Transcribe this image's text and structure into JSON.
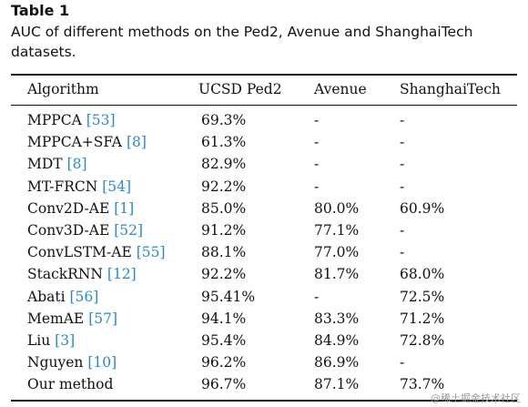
{
  "caption": {
    "label": "Table 1",
    "text": "AUC of different methods on the Ped2, Avenue and ShanghaiTech datasets."
  },
  "table": {
    "headers": [
      "Algorithm",
      "UCSD Ped2",
      "Avenue",
      "ShanghaiTech"
    ],
    "rows": [
      {
        "name": "MPPCA",
        "ref": "[53]",
        "ped2": "69.3%",
        "avenue": "-",
        "shanghaitech": "-"
      },
      {
        "name": "MPPCA+SFA",
        "ref": "[8]",
        "ped2": "61.3%",
        "avenue": "-",
        "shanghaitech": "-"
      },
      {
        "name": "MDT",
        "ref": "[8]",
        "ped2": "82.9%",
        "avenue": "-",
        "shanghaitech": "-"
      },
      {
        "name": "MT-FRCN",
        "ref": "[54]",
        "ped2": "92.2%",
        "avenue": "-",
        "shanghaitech": "-"
      },
      {
        "name": "Conv2D-AE",
        "ref": "[1]",
        "ped2": "85.0%",
        "avenue": "80.0%",
        "shanghaitech": "60.9%"
      },
      {
        "name": "Conv3D-AE",
        "ref": "[52]",
        "ped2": "91.2%",
        "avenue": "77.1%",
        "shanghaitech": "-"
      },
      {
        "name": "ConvLSTM-AE",
        "ref": "[55]",
        "ped2": "88.1%",
        "avenue": "77.0%",
        "shanghaitech": "-"
      },
      {
        "name": "StackRNN",
        "ref": "[12]",
        "ped2": "92.2%",
        "avenue": "81.7%",
        "shanghaitech": "68.0%"
      },
      {
        "name": "Abati",
        "ref": "[56]",
        "ped2": "95.41%",
        "avenue": "-",
        "shanghaitech": "72.5%"
      },
      {
        "name": "MemAE",
        "ref": "[57]",
        "ped2": "94.1%",
        "avenue": "83.3%",
        "shanghaitech": "71.2%"
      },
      {
        "name": "Liu",
        "ref": "[3]",
        "ped2": "95.4%",
        "avenue": "84.9%",
        "shanghaitech": "72.8%"
      },
      {
        "name": "Nguyen",
        "ref": "[10]",
        "ped2": "96.2%",
        "avenue": "86.9%",
        "shanghaitech": "-"
      },
      {
        "name": "Our method",
        "ref": "",
        "ped2": "96.7%",
        "avenue": "87.1%",
        "shanghaitech": "73.7%"
      }
    ]
  },
  "watermark": "@稀土掘金技术社区"
}
